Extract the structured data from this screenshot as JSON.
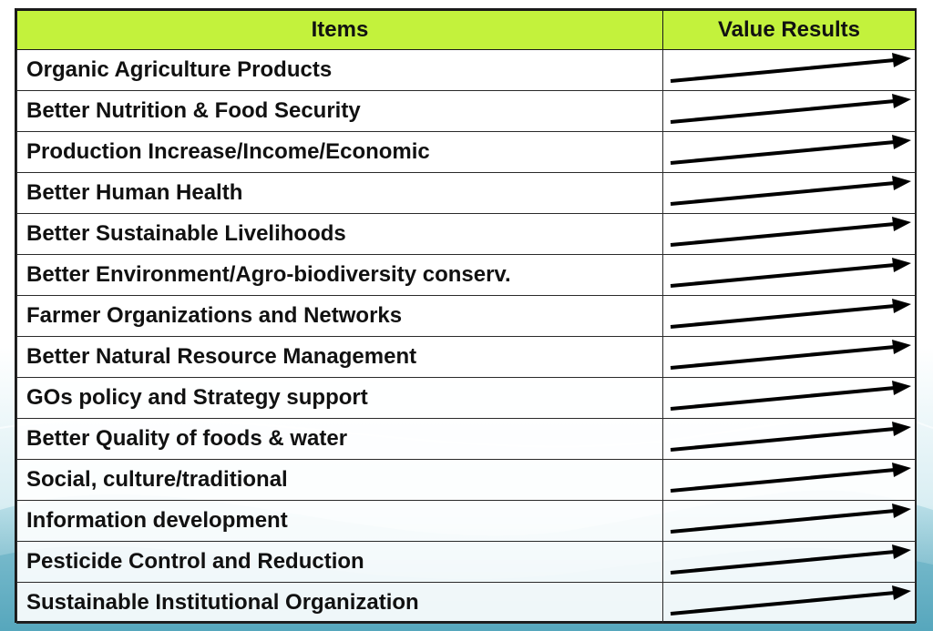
{
  "header": {
    "items_label": "Items",
    "value_label": "Value Results"
  },
  "rows": [
    {
      "item": "Organic Agriculture Products",
      "value_icon": "upward-arrow-icon"
    },
    {
      "item": "Better Nutrition & Food Security",
      "value_icon": "upward-arrow-icon"
    },
    {
      "item": "Production Increase/Income/Economic",
      "value_icon": "upward-arrow-icon"
    },
    {
      "item": "Better Human Health",
      "value_icon": "upward-arrow-icon"
    },
    {
      "item": "Better Sustainable Livelihoods",
      "value_icon": "upward-arrow-icon"
    },
    {
      "item": "Better Environment/Agro-biodiversity conserv.",
      "value_icon": "upward-arrow-icon"
    },
    {
      "item": "Farmer Organizations and Networks",
      "value_icon": "upward-arrow-icon"
    },
    {
      "item": "Better Natural Resource Management",
      "value_icon": "upward-arrow-icon"
    },
    {
      "item": "GOs policy and Strategy support",
      "value_icon": "upward-arrow-icon"
    },
    {
      "item": "Better Quality of foods & water",
      "value_icon": "upward-arrow-icon"
    },
    {
      "item": "Social, culture/traditional",
      "value_icon": "upward-arrow-icon"
    },
    {
      "item": "Information development",
      "value_icon": "upward-arrow-icon"
    },
    {
      "item": "Pesticide Control and Reduction",
      "value_icon": "upward-arrow-icon"
    },
    {
      "item": "Sustainable Institutional Organization",
      "value_icon": "upward-arrow-icon"
    }
  ],
  "colors": {
    "header_bg": "#c3f23c",
    "arrow": "#000000",
    "wave_teal": "#7fc3d3"
  }
}
